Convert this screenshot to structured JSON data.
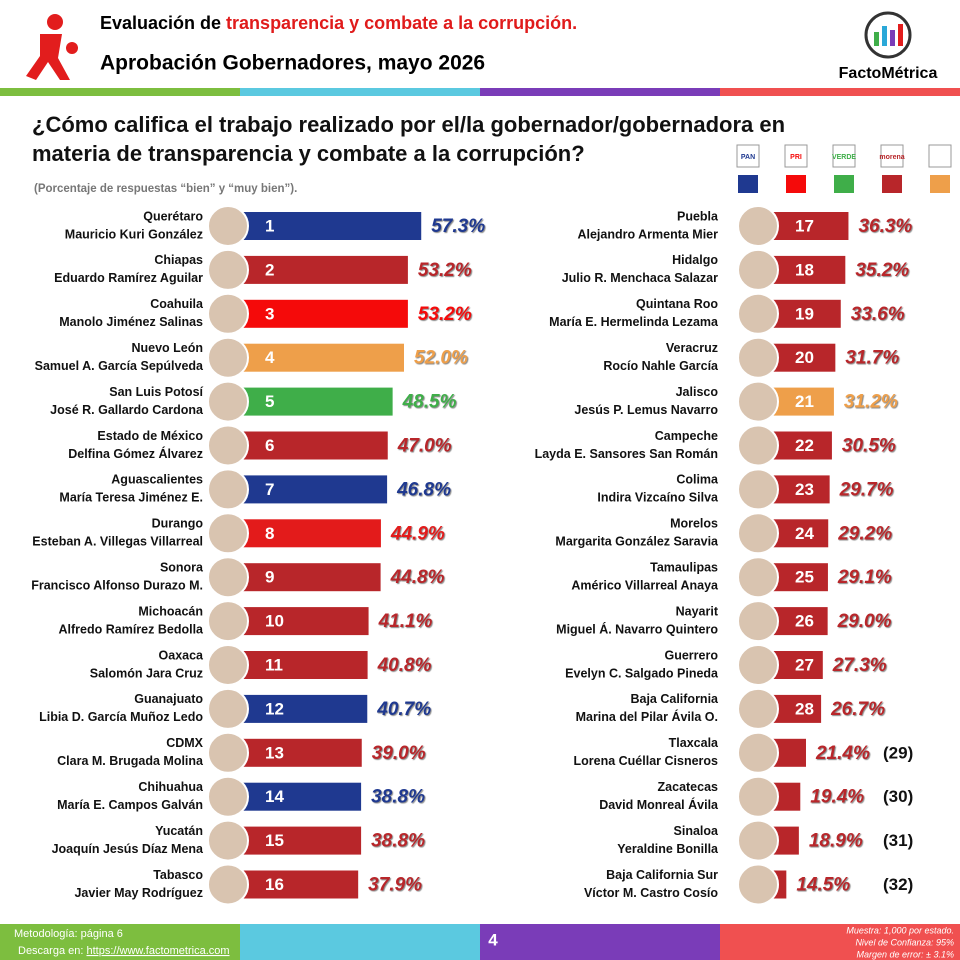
{
  "header": {
    "title_black": "Evaluación de ",
    "title_red": "transparencia y combate a la corrupción.",
    "subtitle": "Aprobación Gobernadores, mayo 2026",
    "brand": "FactoMétrica"
  },
  "chart_data": {
    "type": "bar",
    "title": "¿Cómo califica el trabajo realizado por el/la gobernador/gobernadora en materia de transparencia y combate a la corrupción?",
    "subtitle": "(Porcentaje de respuestas “bien” y “muy bien”).",
    "categories": [
      "Querétaro",
      "Chiapas",
      "Coahuila",
      "Nuevo León",
      "San Luis Potosí",
      "Estado de México",
      "Aguascalientes",
      "Durango",
      "Sonora",
      "Michoacán",
      "Oaxaca",
      "Guanajuato",
      "CDMX",
      "Chihuahua",
      "Yucatán",
      "Tabasco",
      "Puebla",
      "Hidalgo",
      "Quintana Roo",
      "Veracruz",
      "Jalisco",
      "Campeche",
      "Colima",
      "Morelos",
      "Tamaulipas",
      "Nayarit",
      "Guerrero",
      "Baja California",
      "Tlaxcala",
      "Zacatecas",
      "Sinaloa",
      "Baja California Sur"
    ],
    "governors": [
      "Mauricio Kuri González",
      "Eduardo Ramírez Aguilar",
      "Manolo Jiménez Salinas",
      "Samuel A. García Sepúlveda",
      "José R. Gallardo Cardona",
      "Delfina Gómez Álvarez",
      "María Teresa Jiménez E.",
      "Esteban A. Villegas Villarreal",
      "Francisco Alfonso Durazo M.",
      "Alfredo Ramírez Bedolla",
      "Salomón Jara Cruz",
      "Libia D. García Muñoz Ledo",
      "Clara M. Brugada Molina",
      "María E. Campos Galván",
      "Joaquín Jesús Díaz Mena",
      "Javier May Rodríguez",
      "Alejandro Armenta Mier",
      "Julio R. Menchaca Salazar",
      "María E. Hermelinda Lezama",
      "Rocío Nahle García",
      "Jesús P. Lemus Navarro",
      "Layda E. Sansores San Román",
      "Indira Vizcaíno Silva",
      "Margarita González Saravia",
      "Américo Villarreal Anaya",
      "Miguel Á. Navarro Quintero",
      "Evelyn C. Salgado Pineda",
      "Marina del Pilar Ávila O.",
      "Lorena Cuéllar Cisneros",
      "David Monreal Ávila",
      "Yeraldine Bonilla",
      "Víctor M. Castro Cosío"
    ],
    "ranks": [
      "1",
      "2",
      "3",
      "4",
      "5",
      "6",
      "7",
      "8",
      "9",
      "10",
      "11",
      "12",
      "13",
      "14",
      "15",
      "16",
      "17",
      "18",
      "19",
      "20",
      "21",
      "22",
      "23",
      "24",
      "25",
      "26",
      "27",
      "28",
      "(29)",
      "(30)",
      "(31)",
      "(32)"
    ],
    "values": [
      57.3,
      53.2,
      53.2,
      52.0,
      48.5,
      47.0,
      46.8,
      44.9,
      44.8,
      41.1,
      40.8,
      40.7,
      39.0,
      38.8,
      38.8,
      37.9,
      36.3,
      35.2,
      33.6,
      31.7,
      31.2,
      30.5,
      29.7,
      29.2,
      29.1,
      29.0,
      27.3,
      26.7,
      21.4,
      19.4,
      18.9,
      14.5
    ],
    "value_labels": [
      "57.3%",
      "53.2%",
      "53.2%",
      "52.0%",
      "48.5%",
      "47.0%",
      "46.8%",
      "44.9%",
      "44.8%",
      "41.1%",
      "40.8%",
      "40.7%",
      "39.0%",
      "38.8%",
      "38.8%",
      "37.9%",
      "36.3%",
      "35.2%",
      "33.6%",
      "31.7%",
      "31.2%",
      "30.5%",
      "29.7%",
      "29.2%",
      "29.1%",
      "29.0%",
      "27.3%",
      "26.7%",
      "21.4%",
      "19.4%",
      "18.9%",
      "14.5%"
    ],
    "colors": [
      "#1f3990",
      "#b8262a",
      "#f50a0a",
      "#ee9f4a",
      "#3fae49",
      "#b8262a",
      "#1f3990",
      "#e31b1b",
      "#b8262a",
      "#b8262a",
      "#b8262a",
      "#1f3990",
      "#b8262a",
      "#1f3990",
      "#b8262a",
      "#b8262a",
      "#b8262a",
      "#b8262a",
      "#b8262a",
      "#b8262a",
      "#ee9f4a",
      "#b8262a",
      "#b8262a",
      "#b8262a",
      "#b8262a",
      "#b8262a",
      "#b8262a",
      "#b8262a",
      "#b8262a",
      "#b8262a",
      "#b8262a",
      "#b8262a"
    ],
    "legend": {
      "labels": [
        "PAN",
        "PRI",
        "VERDE",
        "morena",
        null
      ],
      "colors": [
        "#1f3990",
        "#f50a0a",
        "#3fae49",
        "#b8262a",
        "#ee9f4a"
      ]
    }
  },
  "footer": {
    "method": "Metodología: página 6",
    "download": "Descarga en: ",
    "url": "https://www.factometrica.com",
    "page": "4",
    "sample": "Muestra:  1,000 por estado.",
    "confidence": "Nivel de Confianza: 95%",
    "margin": "Margen de error: ± 3.1%"
  }
}
